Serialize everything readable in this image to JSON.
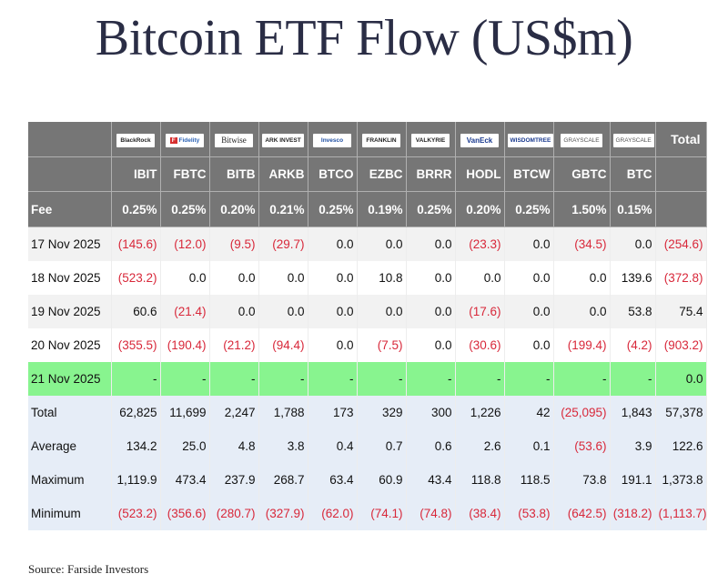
{
  "title": "Bitcoin ETF Flow (US$m)",
  "source": "Source: Farside Investors",
  "colors": {
    "header_bg": "#767676",
    "negative": "#d8283a",
    "highlight": "#88f48f",
    "stats_bg": "#e6edf7"
  },
  "table": {
    "logos": [
      "BlackRock",
      "Fidelity",
      "Bitwise",
      "ARK INVEST",
      "Invesco",
      "FRANKLIN TEMPLETON",
      "VALKYRIE",
      "VanEck",
      "WISDOMTREE",
      "GRAYSCALE",
      "GRAYSCALE"
    ],
    "total_label": "Total",
    "tickers": [
      "IBIT",
      "FBTC",
      "BITB",
      "ARKB",
      "BTCO",
      "EZBC",
      "BRRR",
      "HODL",
      "BTCW",
      "GBTC",
      "BTC"
    ],
    "fee_label": "Fee",
    "fees": [
      "0.25%",
      "0.25%",
      "0.20%",
      "0.21%",
      "0.25%",
      "0.19%",
      "0.25%",
      "0.20%",
      "0.25%",
      "1.50%",
      "0.15%"
    ],
    "rows": [
      {
        "label": "17 Nov 2025",
        "cells": [
          "(145.6)",
          "(12.0)",
          "(9.5)",
          "(29.7)",
          "0.0",
          "0.0",
          "0.0",
          "(23.3)",
          "0.0",
          "(34.5)",
          "0.0",
          "(254.6)"
        ]
      },
      {
        "label": "18 Nov 2025",
        "cells": [
          "(523.2)",
          "0.0",
          "0.0",
          "0.0",
          "0.0",
          "10.8",
          "0.0",
          "0.0",
          "0.0",
          "0.0",
          "139.6",
          "(372.8)"
        ]
      },
      {
        "label": "19 Nov 2025",
        "cells": [
          "60.6",
          "(21.4)",
          "0.0",
          "0.0",
          "0.0",
          "0.0",
          "0.0",
          "(17.6)",
          "0.0",
          "0.0",
          "53.8",
          "75.4"
        ]
      },
      {
        "label": "20 Nov 2025",
        "cells": [
          "(355.5)",
          "(190.4)",
          "(21.2)",
          "(94.4)",
          "0.0",
          "(7.5)",
          "0.0",
          "(30.6)",
          "0.0",
          "(199.4)",
          "(4.2)",
          "(903.2)"
        ]
      },
      {
        "label": "21 Nov 2025",
        "cells": [
          "-",
          "-",
          "-",
          "-",
          "-",
          "-",
          "-",
          "-",
          "-",
          "-",
          "-",
          "0.0"
        ]
      },
      {
        "label": "Total",
        "cells": [
          "62,825",
          "11,699",
          "2,247",
          "1,788",
          "173",
          "329",
          "300",
          "1,226",
          "42",
          "(25,095)",
          "1,843",
          "57,378"
        ]
      },
      {
        "label": "Average",
        "cells": [
          "134.2",
          "25.0",
          "4.8",
          "3.8",
          "0.4",
          "0.7",
          "0.6",
          "2.6",
          "0.1",
          "(53.6)",
          "3.9",
          "122.6"
        ]
      },
      {
        "label": "Maximum",
        "cells": [
          "1,119.9",
          "473.4",
          "237.9",
          "268.7",
          "63.4",
          "60.9",
          "43.4",
          "118.8",
          "118.5",
          "73.8",
          "191.1",
          "1,373.8"
        ]
      },
      {
        "label": "Minimum",
        "cells": [
          "(523.2)",
          "(356.6)",
          "(280.7)",
          "(327.9)",
          "(62.0)",
          "(74.1)",
          "(74.8)",
          "(38.4)",
          "(53.8)",
          "(642.5)",
          "(318.2)",
          "(1,113.7)"
        ]
      }
    ]
  }
}
